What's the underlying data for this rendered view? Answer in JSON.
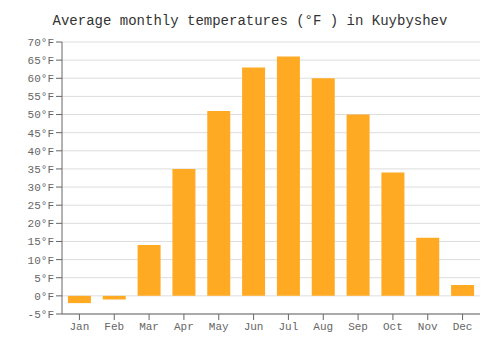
{
  "chart_data": {
    "type": "bar",
    "title": "Average monthly temperatures (°F ) in Kuybyshev",
    "categories": [
      "Jan",
      "Feb",
      "Mar",
      "Apr",
      "May",
      "Jun",
      "Jul",
      "Aug",
      "Sep",
      "Oct",
      "Nov",
      "Dec"
    ],
    "values": [
      -2,
      -1,
      14,
      35,
      51,
      63,
      66,
      60,
      50,
      34,
      16,
      3
    ],
    "color": "#FFAA22",
    "ylim": [
      -5,
      70
    ],
    "yticks": [
      {
        "value": -5,
        "label": "-5°F"
      },
      {
        "value": 0,
        "label": "0°F"
      },
      {
        "value": 5,
        "label": "5°F"
      },
      {
        "value": 10,
        "label": "10°F"
      },
      {
        "value": 15,
        "label": "15°F"
      },
      {
        "value": 20,
        "label": "20°F"
      },
      {
        "value": 25,
        "label": "25°F"
      },
      {
        "value": 30,
        "label": "30°F"
      },
      {
        "value": 35,
        "label": "35°F"
      },
      {
        "value": 40,
        "label": "40°F"
      },
      {
        "value": 45,
        "label": "45°F"
      },
      {
        "value": 50,
        "label": "50°F"
      },
      {
        "value": 55,
        "label": "55°F"
      },
      {
        "value": 60,
        "label": "60°F"
      },
      {
        "value": 65,
        "label": "65°F"
      },
      {
        "value": 70,
        "label": "70°F"
      }
    ],
    "grid": true
  }
}
